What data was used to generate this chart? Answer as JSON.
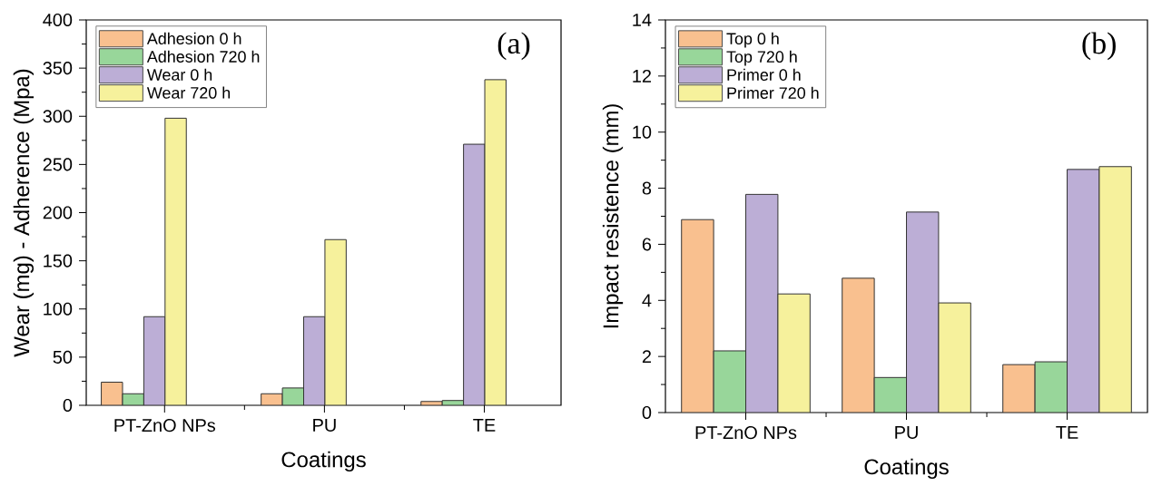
{
  "chart_data": [
    {
      "type": "bar",
      "xlabel": "Coatings",
      "ylabel": "Wear (mg) - Adherence (Mpa)",
      "annotations": [
        "(a)"
      ],
      "categories": [
        "PT-ZnO NPs",
        "PU",
        "TE"
      ],
      "series": [
        {
          "name": "Adhesion 0 h",
          "color": "#f9c08f",
          "values": [
            24,
            12,
            4
          ]
        },
        {
          "name": "Adhesion 720 h",
          "color": "#98d69a",
          "values": [
            12,
            18,
            5
          ]
        },
        {
          "name": "Wear 0 h",
          "color": "#bcaed6",
          "values": [
            92,
            92,
            271
          ]
        },
        {
          "name": "Wear 720 h",
          "color": "#f6f19c",
          "values": [
            298,
            172,
            338
          ]
        }
      ],
      "ylim": [
        0,
        400
      ],
      "yticks": [
        0,
        50,
        100,
        150,
        200,
        250,
        300,
        350,
        400
      ],
      "legend": "top left",
      "grid": false
    },
    {
      "type": "bar",
      "xlabel": "Coatings",
      "ylabel": "Impact resistence (mm)",
      "annotations": [
        "(b)"
      ],
      "categories": [
        "PT-ZnO NPs",
        "PU",
        "TE"
      ],
      "series": [
        {
          "name": "Top 0 h",
          "color": "#f9c08f",
          "values": [
            6.88,
            4.79,
            1.71
          ]
        },
        {
          "name": "Top 720 h",
          "color": "#98d69a",
          "values": [
            2.2,
            1.25,
            1.81
          ]
        },
        {
          "name": "Primer 0 h",
          "color": "#bcaed6",
          "values": [
            7.78,
            7.15,
            8.67
          ]
        },
        {
          "name": "Primer 720 h",
          "color": "#f6f19c",
          "values": [
            4.23,
            3.91,
            8.77
          ]
        }
      ],
      "ylim": [
        0,
        14
      ],
      "yticks": [
        0,
        2,
        4,
        6,
        8,
        10,
        12,
        14
      ],
      "legend": "top left",
      "grid": false
    }
  ]
}
